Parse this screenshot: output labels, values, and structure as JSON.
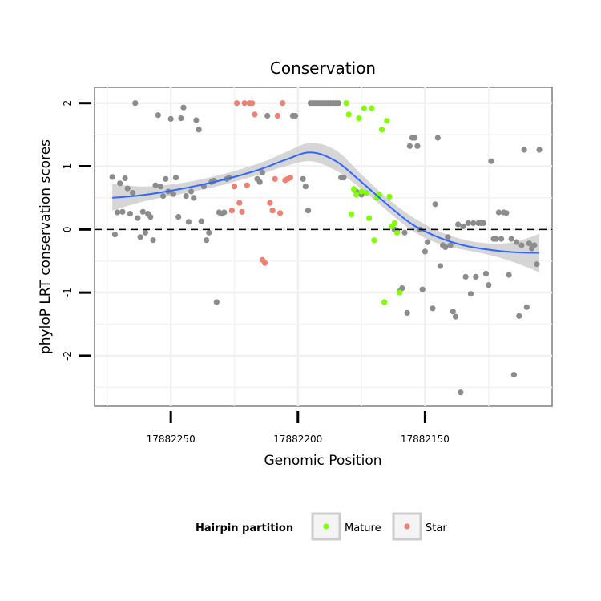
{
  "chart_data": {
    "type": "scatter",
    "title": "Conservation",
    "xlabel": "Genomic Position",
    "ylabel": "phyloP LRT conservation scores",
    "x_reversed": true,
    "xlim": [
      17882280,
      17882100
    ],
    "ylim": [
      -2.8,
      2.25
    ],
    "x_ticks": [
      17882250,
      17882200,
      17882150
    ],
    "x_tick_labels": [
      "17882250",
      "17882200",
      "17882150"
    ],
    "y_ticks": [
      -2,
      -1,
      0,
      1,
      2
    ],
    "y_tick_labels": [
      "-2",
      "-1",
      "0",
      "1",
      "2"
    ],
    "reference_line": {
      "y": 0,
      "style": "dashed"
    },
    "grid": true,
    "legend": {
      "title": "Hairpin partition",
      "placement": "bottom",
      "entries": [
        {
          "label": "Mature",
          "color": "#7FFF00"
        },
        {
          "label": "Star",
          "color": "#F08072"
        }
      ]
    },
    "colors": {
      "other": "#8C8C8C",
      "mature": "#7FFF00",
      "star": "#F08072",
      "smooth": "#3366FF",
      "ribbon": "#C8C8C8"
    },
    "series": [
      {
        "group": "other",
        "points": [
          [
            17882273,
            0.83
          ],
          [
            17882272,
            -0.08
          ],
          [
            17882271,
            0.27
          ],
          [
            17882270,
            0.73
          ],
          [
            17882269,
            0.28
          ],
          [
            17882268,
            0.81
          ],
          [
            17882267,
            0.65
          ],
          [
            17882266,
            0.25
          ],
          [
            17882265,
            0.58
          ],
          [
            17882264,
            2.0
          ],
          [
            17882263,
            0.18
          ],
          [
            17882262,
            -0.12
          ],
          [
            17882261,
            0.28
          ],
          [
            17882260,
            -0.05
          ],
          [
            17882259,
            0.25
          ],
          [
            17882258,
            0.2
          ],
          [
            17882257,
            -0.17
          ],
          [
            17882256,
            0.7
          ],
          [
            17882255,
            1.81
          ],
          [
            17882254,
            0.68
          ],
          [
            17882253,
            0.53
          ],
          [
            17882252,
            0.8
          ],
          [
            17882251,
            0.6
          ],
          [
            17882250,
            1.75
          ],
          [
            17882249,
            0.56
          ],
          [
            17882248,
            0.82
          ],
          [
            17882247,
            0.2
          ],
          [
            17882246,
            1.76
          ],
          [
            17882245,
            1.93
          ],
          [
            17882244,
            0.53
          ],
          [
            17882243,
            0.12
          ],
          [
            17882242,
            0.6
          ],
          [
            17882241,
            0.5
          ],
          [
            17882240,
            1.73
          ],
          [
            17882239,
            1.58
          ],
          [
            17882238,
            0.13
          ],
          [
            17882237,
            0.68
          ],
          [
            17882236,
            -0.17
          ],
          [
            17882235,
            -0.05
          ],
          [
            17882234,
            0.75
          ],
          [
            17882233,
            0.77
          ],
          [
            17882232,
            -1.15
          ],
          [
            17882231,
            0.27
          ],
          [
            17882230,
            0.25
          ],
          [
            17882229,
            0.27
          ],
          [
            17882228,
            0.8
          ],
          [
            17882227,
            0.82
          ],
          [
            17882216,
            0.8
          ],
          [
            17882215,
            0.75
          ],
          [
            17882214,
            0.9
          ],
          [
            17882212,
            1.8
          ],
          [
            17882202,
            1.8
          ],
          [
            17882201,
            1.8
          ],
          [
            17882198,
            0.8
          ],
          [
            17882197,
            0.68
          ],
          [
            17882196,
            0.3
          ],
          [
            17882195,
            2.0
          ],
          [
            17882194,
            2.0
          ],
          [
            17882193,
            2.0
          ],
          [
            17882192,
            2.0
          ],
          [
            17882191,
            2.0
          ],
          [
            17882190,
            2.0
          ],
          [
            17882189,
            2.0
          ],
          [
            17882188,
            2.0
          ],
          [
            17882187,
            2.0
          ],
          [
            17882186,
            2.0
          ],
          [
            17882185,
            2.0
          ],
          [
            17882184,
            2.0
          ],
          [
            17882183,
            0.82
          ],
          [
            17882182,
            0.82
          ],
          [
            17882177,
            0.6
          ],
          [
            17882175,
            0.55
          ],
          [
            17882162,
            0.0
          ],
          [
            17882161,
            -0.02
          ],
          [
            17882160,
            -0.98
          ],
          [
            17882159,
            -0.93
          ],
          [
            17882158,
            -0.05
          ],
          [
            17882157,
            -1.32
          ],
          [
            17882156,
            1.32
          ],
          [
            17882155,
            1.45
          ],
          [
            17882154,
            1.45
          ],
          [
            17882153,
            1.32
          ],
          [
            17882152,
            0.0
          ],
          [
            17882151,
            -0.95
          ],
          [
            17882150,
            -0.35
          ],
          [
            17882149,
            -0.2
          ],
          [
            17882147,
            -1.25
          ],
          [
            17882146,
            0.4
          ],
          [
            17882145,
            1.45
          ],
          [
            17882144,
            -0.58
          ],
          [
            17882143,
            -0.25
          ],
          [
            17882142,
            -0.28
          ],
          [
            17882141,
            -0.12
          ],
          [
            17882140,
            -0.25
          ],
          [
            17882139,
            -1.3
          ],
          [
            17882138,
            -1.38
          ],
          [
            17882137,
            0.08
          ],
          [
            17882136,
            -2.58
          ],
          [
            17882135,
            0.05
          ],
          [
            17882134,
            -0.75
          ],
          [
            17882133,
            0.1
          ],
          [
            17882132,
            -1.02
          ],
          [
            17882131,
            0.1
          ],
          [
            17882130,
            -0.75
          ],
          [
            17882129,
            0.1
          ],
          [
            17882128,
            0.1
          ],
          [
            17882127,
            0.1
          ],
          [
            17882126,
            -0.7
          ],
          [
            17882125,
            -0.88
          ],
          [
            17882124,
            1.08
          ],
          [
            17882123,
            -0.15
          ],
          [
            17882122,
            -0.15
          ],
          [
            17882121,
            0.27
          ],
          [
            17882120,
            -0.15
          ],
          [
            17882119,
            0.27
          ],
          [
            17882118,
            0.26
          ],
          [
            17882117,
            -0.72
          ],
          [
            17882116,
            -0.15
          ],
          [
            17882115,
            -2.3
          ],
          [
            17882114,
            -0.2
          ],
          [
            17882113,
            -1.37
          ],
          [
            17882112,
            -0.25
          ],
          [
            17882111,
            1.26
          ],
          [
            17882110,
            -1.23
          ],
          [
            17882109,
            -0.22
          ],
          [
            17882108,
            -0.3
          ],
          [
            17882107,
            -0.25
          ],
          [
            17882106,
            -0.55
          ],
          [
            17882105,
            1.26
          ]
        ]
      },
      {
        "group": "star",
        "points": [
          [
            17882226,
            0.3
          ],
          [
            17882225,
            0.68
          ],
          [
            17882224,
            2.0
          ],
          [
            17882223,
            0.42
          ],
          [
            17882222,
            0.28
          ],
          [
            17882221,
            2.0
          ],
          [
            17882220,
            0.7
          ],
          [
            17882219,
            2.0
          ],
          [
            17882218,
            2.0
          ],
          [
            17882217,
            1.82
          ],
          [
            17882214,
            -0.48
          ],
          [
            17882213,
            -0.53
          ],
          [
            17882211,
            0.42
          ],
          [
            17882210,
            0.3
          ],
          [
            17882209,
            0.8
          ],
          [
            17882208,
            1.8
          ],
          [
            17882207,
            0.26
          ],
          [
            17882206,
            2.0
          ],
          [
            17882205,
            0.78
          ],
          [
            17882204,
            0.8
          ],
          [
            17882203,
            0.82
          ]
        ]
      },
      {
        "group": "mature",
        "points": [
          [
            17882181,
            2.0
          ],
          [
            17882180,
            1.82
          ],
          [
            17882179,
            0.24
          ],
          [
            17882178,
            0.64
          ],
          [
            17882177,
            0.55
          ],
          [
            17882176,
            1.76
          ],
          [
            17882175,
            0.6
          ],
          [
            17882174,
            1.92
          ],
          [
            17882173,
            0.58
          ],
          [
            17882172,
            0.18
          ],
          [
            17882171,
            1.92
          ],
          [
            17882170,
            -0.17
          ],
          [
            17882169,
            0.5
          ],
          [
            17882168,
            0.55
          ],
          [
            17882167,
            1.58
          ],
          [
            17882166,
            -1.15
          ],
          [
            17882165,
            1.72
          ],
          [
            17882164,
            0.52
          ],
          [
            17882163,
            0.05
          ],
          [
            17882162,
            0.1
          ],
          [
            17882161,
            -0.05
          ],
          [
            17882160,
            -1.0
          ]
        ]
      }
    ],
    "smooth": {
      "x": [
        17882273,
        17882260,
        17882245,
        17882230,
        17882215,
        17882205,
        17882195,
        17882185,
        17882175,
        17882165,
        17882155,
        17882145,
        17882135,
        17882125,
        17882115,
        17882105
      ],
      "y": [
        0.5,
        0.55,
        0.65,
        0.78,
        0.95,
        1.1,
        1.22,
        1.08,
        0.75,
        0.4,
        0.08,
        -0.12,
        -0.25,
        -0.32,
        -0.36,
        -0.37
      ],
      "lower": [
        0.3,
        0.45,
        0.57,
        0.7,
        0.87,
        1.0,
        1.08,
        0.93,
        0.64,
        0.3,
        -0.02,
        -0.22,
        -0.32,
        -0.4,
        -0.52,
        -0.68
      ],
      "upper": [
        0.72,
        0.68,
        0.74,
        0.87,
        1.05,
        1.22,
        1.37,
        1.25,
        0.87,
        0.5,
        0.2,
        -0.02,
        -0.16,
        -0.22,
        -0.2,
        -0.07
      ]
    }
  }
}
